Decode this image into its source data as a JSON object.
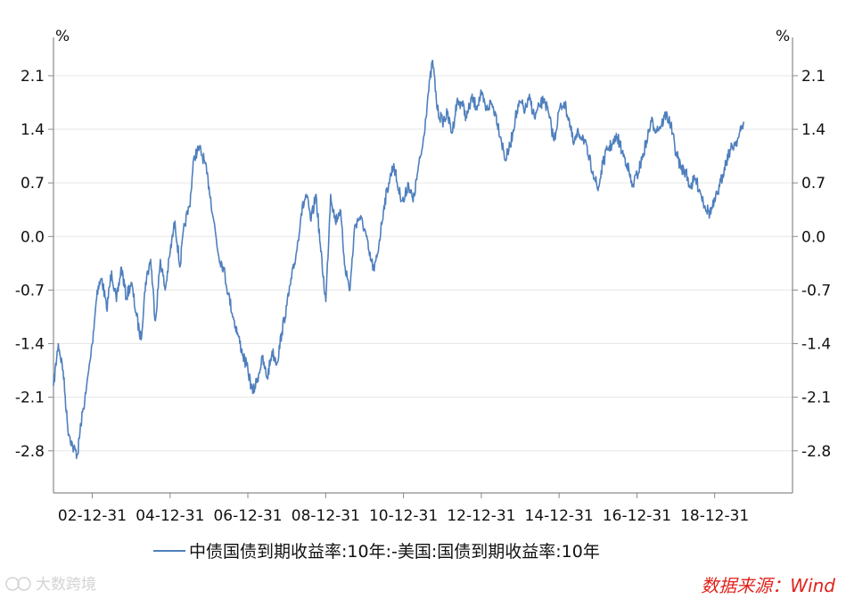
{
  "chart_data": {
    "type": "line",
    "unit_left": "%",
    "unit_right": "%",
    "y_ticks": [
      2.1,
      1.4,
      0.7,
      0.0,
      -0.7,
      -1.4,
      -2.1,
      -2.8
    ],
    "y_tick_labels": [
      "2.1",
      "1.4",
      "0.7",
      "0.0",
      "-0.7",
      "-1.4",
      "-2.1",
      "-2.8"
    ],
    "ylim": [
      -3.35,
      2.6
    ],
    "x_range": [
      "2002-01-01",
      "2020-12-31"
    ],
    "x_tick_dates": [
      "2002-12-31",
      "2004-12-31",
      "2006-12-31",
      "2008-12-31",
      "2010-12-31",
      "2012-12-31",
      "2014-12-31",
      "2016-12-31",
      "2018-12-31"
    ],
    "x_tick_labels": [
      "02-12-31",
      "04-12-31",
      "06-12-31",
      "08-12-31",
      "10-12-31",
      "12-12-31",
      "14-12-31",
      "16-12-31",
      "18-12-31"
    ],
    "grid": true,
    "legend_position": "bottom",
    "series": [
      {
        "name": "中债国债到期收益率:10年:-美国:国债到期收益率:10年",
        "color": "#4f7fbd",
        "points": [
          [
            "2002-01-01",
            -1.95
          ],
          [
            "2002-02-15",
            -1.4
          ],
          [
            "2002-04-01",
            -1.75
          ],
          [
            "2002-05-15",
            -2.5
          ],
          [
            "2002-07-01",
            -2.75
          ],
          [
            "2002-08-15",
            -2.85
          ],
          [
            "2002-09-15",
            -2.45
          ],
          [
            "2002-11-01",
            -2.05
          ],
          [
            "2002-12-31",
            -1.4
          ],
          [
            "2003-02-15",
            -0.7
          ],
          [
            "2003-04-01",
            -0.55
          ],
          [
            "2003-05-15",
            -0.95
          ],
          [
            "2003-07-01",
            -0.45
          ],
          [
            "2003-08-15",
            -0.85
          ],
          [
            "2003-10-01",
            -0.4
          ],
          [
            "2003-11-15",
            -0.8
          ],
          [
            "2004-01-01",
            -0.6
          ],
          [
            "2004-02-15",
            -1.0
          ],
          [
            "2004-04-01",
            -1.35
          ],
          [
            "2004-05-15",
            -0.6
          ],
          [
            "2004-07-01",
            -0.3
          ],
          [
            "2004-08-15",
            -1.1
          ],
          [
            "2004-10-01",
            -0.3
          ],
          [
            "2004-11-15",
            -0.7
          ],
          [
            "2005-01-01",
            -0.2
          ],
          [
            "2005-02-15",
            0.2
          ],
          [
            "2005-04-01",
            -0.4
          ],
          [
            "2005-05-15",
            0.15
          ],
          [
            "2005-07-01",
            0.4
          ],
          [
            "2005-08-15",
            1.05
          ],
          [
            "2005-10-01",
            1.15
          ],
          [
            "2005-11-15",
            1.0
          ],
          [
            "2006-01-01",
            0.65
          ],
          [
            "2006-02-15",
            0.2
          ],
          [
            "2006-04-01",
            -0.25
          ],
          [
            "2006-05-15",
            -0.4
          ],
          [
            "2006-07-01",
            -0.75
          ],
          [
            "2006-08-15",
            -1.05
          ],
          [
            "2006-10-01",
            -1.3
          ],
          [
            "2006-11-15",
            -1.55
          ],
          [
            "2007-01-01",
            -1.75
          ],
          [
            "2007-02-15",
            -2.05
          ],
          [
            "2007-04-01",
            -1.85
          ],
          [
            "2007-05-15",
            -1.6
          ],
          [
            "2007-07-01",
            -1.85
          ],
          [
            "2007-08-15",
            -1.5
          ],
          [
            "2007-10-01",
            -1.65
          ],
          [
            "2007-11-15",
            -1.25
          ],
          [
            "2008-01-01",
            -0.9
          ],
          [
            "2008-02-15",
            -0.55
          ],
          [
            "2008-04-01",
            -0.2
          ],
          [
            "2008-05-15",
            0.3
          ],
          [
            "2008-07-01",
            0.55
          ],
          [
            "2008-08-15",
            0.2
          ],
          [
            "2008-10-01",
            0.55
          ],
          [
            "2008-11-15",
            -0.2
          ],
          [
            "2009-01-01",
            -0.85
          ],
          [
            "2009-02-15",
            0.55
          ],
          [
            "2009-04-01",
            0.2
          ],
          [
            "2009-05-15",
            0.35
          ],
          [
            "2009-07-01",
            -0.4
          ],
          [
            "2009-08-15",
            -0.7
          ],
          [
            "2009-10-01",
            0.15
          ],
          [
            "2009-11-15",
            0.25
          ],
          [
            "2010-01-01",
            0.1
          ],
          [
            "2010-02-15",
            -0.25
          ],
          [
            "2010-04-01",
            -0.45
          ],
          [
            "2010-05-15",
            -0.1
          ],
          [
            "2010-07-01",
            0.4
          ],
          [
            "2010-08-15",
            0.7
          ],
          [
            "2010-10-01",
            0.95
          ],
          [
            "2010-11-15",
            0.6
          ],
          [
            "2011-01-01",
            0.45
          ],
          [
            "2011-02-15",
            0.7
          ],
          [
            "2011-04-01",
            0.45
          ],
          [
            "2011-05-15",
            0.85
          ],
          [
            "2011-07-01",
            1.2
          ],
          [
            "2011-08-15",
            1.8
          ],
          [
            "2011-10-01",
            2.3
          ],
          [
            "2011-11-15",
            1.65
          ],
          [
            "2012-01-01",
            1.5
          ],
          [
            "2012-02-15",
            1.6
          ],
          [
            "2012-04-01",
            1.35
          ],
          [
            "2012-05-15",
            1.75
          ],
          [
            "2012-07-01",
            1.75
          ],
          [
            "2012-08-15",
            1.55
          ],
          [
            "2012-10-01",
            1.8
          ],
          [
            "2012-11-15",
            1.7
          ],
          [
            "2013-01-01",
            1.85
          ],
          [
            "2013-02-15",
            1.65
          ],
          [
            "2013-04-01",
            1.75
          ],
          [
            "2013-05-15",
            1.6
          ],
          [
            "2013-07-01",
            1.3
          ],
          [
            "2013-08-15",
            1.0
          ],
          [
            "2013-10-01",
            1.2
          ],
          [
            "2013-11-15",
            1.55
          ],
          [
            "2014-01-01",
            1.75
          ],
          [
            "2014-02-15",
            1.65
          ],
          [
            "2014-04-01",
            1.8
          ],
          [
            "2014-05-15",
            1.55
          ],
          [
            "2014-07-01",
            1.7
          ],
          [
            "2014-08-15",
            1.8
          ],
          [
            "2014-10-01",
            1.55
          ],
          [
            "2014-11-15",
            1.25
          ],
          [
            "2015-01-01",
            1.65
          ],
          [
            "2015-02-15",
            1.75
          ],
          [
            "2015-04-01",
            1.55
          ],
          [
            "2015-05-15",
            1.2
          ],
          [
            "2015-07-01",
            1.35
          ],
          [
            "2015-08-15",
            1.3
          ],
          [
            "2015-10-01",
            1.05
          ],
          [
            "2015-11-15",
            0.85
          ],
          [
            "2016-01-01",
            0.6
          ],
          [
            "2016-02-15",
            0.95
          ],
          [
            "2016-04-01",
            1.15
          ],
          [
            "2016-05-15",
            1.2
          ],
          [
            "2016-07-01",
            1.3
          ],
          [
            "2016-08-15",
            1.1
          ],
          [
            "2016-10-01",
            0.95
          ],
          [
            "2016-11-15",
            0.65
          ],
          [
            "2017-01-01",
            0.8
          ],
          [
            "2017-02-15",
            1.0
          ],
          [
            "2017-04-01",
            1.25
          ],
          [
            "2017-05-15",
            1.5
          ],
          [
            "2017-07-01",
            1.4
          ],
          [
            "2017-08-15",
            1.45
          ],
          [
            "2017-10-01",
            1.6
          ],
          [
            "2017-11-15",
            1.45
          ],
          [
            "2018-01-01",
            1.1
          ],
          [
            "2018-02-15",
            0.9
          ],
          [
            "2018-04-01",
            0.85
          ],
          [
            "2018-05-15",
            0.65
          ],
          [
            "2018-07-01",
            0.75
          ],
          [
            "2018-08-15",
            0.6
          ],
          [
            "2018-10-01",
            0.4
          ],
          [
            "2018-11-15",
            0.3
          ],
          [
            "2019-01-01",
            0.45
          ],
          [
            "2019-02-15",
            0.65
          ],
          [
            "2019-04-01",
            0.9
          ],
          [
            "2019-05-15",
            1.1
          ],
          [
            "2019-07-01",
            1.2
          ],
          [
            "2019-08-15",
            1.3
          ],
          [
            "2019-10-01",
            1.5
          ]
        ]
      }
    ]
  },
  "legend": {
    "label": "中债国债到期收益率:10年:-美国:国债到期收益率:10年"
  },
  "footer": {
    "source": "数据来源：Wind",
    "watermark_brand": "大数跨境"
  }
}
